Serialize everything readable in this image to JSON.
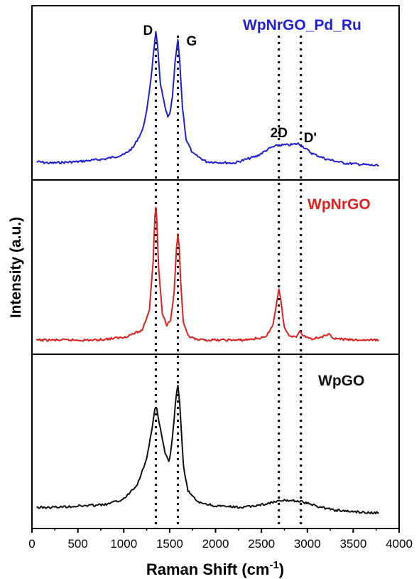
{
  "chart_data": {
    "type": "line",
    "xlabel": "Raman Shift (cm",
    "xlabel_sup": "-1",
    "xlabel_end": ")",
    "ylabel": "Intensity (a.u.)",
    "xlim": [
      0,
      4000
    ],
    "xticks": [
      0,
      500,
      1000,
      1500,
      2000,
      2500,
      3000,
      3500,
      4000
    ],
    "tick_labels": [
      "0",
      "500",
      "1000",
      "1500",
      "2000",
      "2500",
      "3000",
      "3500",
      "4000"
    ],
    "stacked_panels": 3,
    "peak_lines": [
      {
        "label": "D",
        "x": 1350
      },
      {
        "label": "G",
        "x": 1590
      },
      {
        "label": "2D",
        "x": 2690
      },
      {
        "label": "D'",
        "x": 2930
      }
    ],
    "series": [
      {
        "name": "WpNrGO_Pd_Ru",
        "color": "#1f1fd6",
        "panel": 0,
        "x": [
          50,
          200,
          500,
          800,
          1000,
          1100,
          1200,
          1250,
          1300,
          1330,
          1350,
          1370,
          1400,
          1450,
          1480,
          1500,
          1530,
          1560,
          1590,
          1610,
          1640,
          1680,
          1750,
          1900,
          2200,
          2450,
          2600,
          2690,
          2800,
          2900,
          2950,
          3050,
          3200,
          3400,
          3600,
          3780
        ],
        "y": [
          0.06,
          0.05,
          0.06,
          0.08,
          0.11,
          0.16,
          0.28,
          0.42,
          0.68,
          0.88,
          0.99,
          0.88,
          0.62,
          0.45,
          0.38,
          0.4,
          0.52,
          0.78,
          0.94,
          0.78,
          0.45,
          0.22,
          0.12,
          0.06,
          0.05,
          0.1,
          0.16,
          0.18,
          0.18,
          0.19,
          0.17,
          0.12,
          0.08,
          0.05,
          0.04,
          0.03
        ]
      },
      {
        "name": "WpNrGO",
        "color": "#e01f1f",
        "panel": 1,
        "x": [
          50,
          300,
          700,
          1000,
          1200,
          1280,
          1320,
          1340,
          1350,
          1360,
          1380,
          1420,
          1470,
          1510,
          1550,
          1575,
          1590,
          1605,
          1620,
          1650,
          1700,
          1800,
          2000,
          2300,
          2550,
          2630,
          2670,
          2690,
          2710,
          2750,
          2800,
          2880,
          2920,
          2960,
          3050,
          3200,
          3240,
          3300,
          3500,
          3780
        ],
        "y": [
          0.03,
          0.03,
          0.03,
          0.05,
          0.1,
          0.25,
          0.6,
          0.92,
          0.99,
          0.9,
          0.55,
          0.22,
          0.14,
          0.18,
          0.38,
          0.7,
          0.79,
          0.7,
          0.45,
          0.15,
          0.06,
          0.03,
          0.03,
          0.03,
          0.05,
          0.15,
          0.32,
          0.4,
          0.32,
          0.12,
          0.06,
          0.06,
          0.09,
          0.06,
          0.04,
          0.06,
          0.07,
          0.04,
          0.03,
          0.03
        ]
      },
      {
        "name": "WpGO",
        "color": "#111111",
        "panel": 2,
        "x": [
          50,
          200,
          500,
          800,
          1000,
          1150,
          1250,
          1300,
          1340,
          1360,
          1400,
          1450,
          1490,
          1510,
          1540,
          1570,
          1590,
          1610,
          1650,
          1700,
          1800,
          2000,
          2300,
          2500,
          2650,
          2750,
          2850,
          2950,
          3100,
          3300,
          3500,
          3780
        ],
        "y": [
          0.08,
          0.08,
          0.09,
          0.1,
          0.14,
          0.25,
          0.43,
          0.62,
          0.79,
          0.79,
          0.64,
          0.47,
          0.41,
          0.47,
          0.65,
          0.88,
          0.96,
          0.82,
          0.38,
          0.2,
          0.12,
          0.09,
          0.08,
          0.1,
          0.12,
          0.13,
          0.13,
          0.12,
          0.09,
          0.06,
          0.05,
          0.04
        ]
      }
    ]
  }
}
